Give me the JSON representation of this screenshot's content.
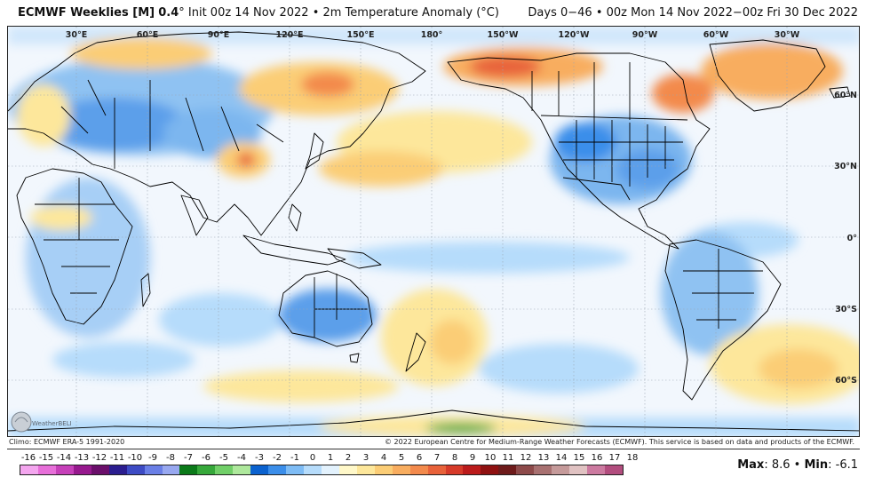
{
  "header": {
    "brand": "ECMWF Weeklies [M]",
    "resolution": "0.4",
    "degree": "°",
    "init_text": "Init 00z 14 Nov 2022 • 2m Temperature Anomaly (°C)",
    "valid_text": "Days 0−46 • 00z Mon 14 Nov 2022−00z Fri 30 Dec 2022"
  },
  "map": {
    "top_longitude_labels": [
      "30°E",
      "60°E",
      "90°E",
      "120°E",
      "150°E",
      "180°",
      "150°W",
      "120°W",
      "90°W",
      "60°W",
      "30°W"
    ],
    "right_latitude_labels": [
      "60°N",
      "30°N",
      "0°",
      "30°S",
      "60°S"
    ],
    "ocean_color": "#f2f7fd",
    "land_outline_color": "#000000"
  },
  "footer": {
    "climo": "Climo: ECMWF ERA-5 1991-2020",
    "copyright": "© 2022 European Centre for Medium-Range Weather Forecasts (ECMWF). This service is based on data and products of the ECMWF."
  },
  "logo": {
    "text": "WeatherBELL"
  },
  "colorbar": {
    "labels": [
      "-16",
      "-15",
      "-14",
      "-13",
      "-12",
      "-11",
      "-10",
      "-9",
      "-8",
      "-7",
      "-6",
      "-5",
      "-4",
      "-3",
      "-2",
      "-1",
      "0",
      "1",
      "2",
      "3",
      "4",
      "5",
      "6",
      "7",
      "8",
      "9",
      "10",
      "11",
      "12",
      "13",
      "14",
      "15",
      "16",
      "17",
      "18"
    ],
    "colors": [
      "#f4a6ef",
      "#e76fd9",
      "#c640b9",
      "#97198e",
      "#6b0f6b",
      "#2b1d8f",
      "#3d4bc4",
      "#6a7fe6",
      "#98a8f0",
      "#0b7a19",
      "#36a83a",
      "#71cf68",
      "#aee89c",
      "#0b62cf",
      "#3b8eea",
      "#7ebcf5",
      "#b6dcfb",
      "#e3f2fd",
      "#fff8c9",
      "#fde79b",
      "#fbcd76",
      "#f8ad5f",
      "#f38a4c",
      "#e8623a",
      "#d63a29",
      "#bb1b1b",
      "#8f1111",
      "#6e1b1b",
      "#8d4a4a",
      "#a87171",
      "#c59a9a",
      "#e0c2c2",
      "#cc7aa0",
      "#b24d7e"
    ]
  },
  "stats": {
    "max_label": "Max",
    "max_value": ": 8.6 •",
    "min_label": "Min",
    "min_value": ": -6.1"
  }
}
